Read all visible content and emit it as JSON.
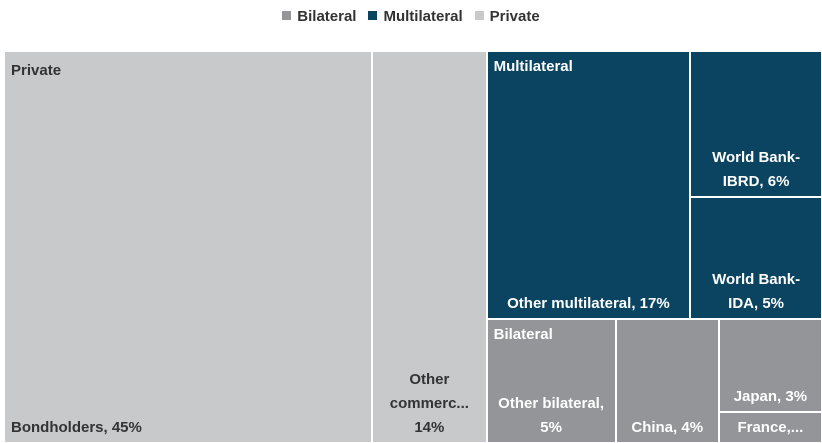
{
  "chart_data": {
    "type": "treemap",
    "legend_position": "top",
    "groups": [
      {
        "name": "Bilateral",
        "color": "#939598",
        "text_color": "#ffffff",
        "labels": [
          "Other bilateral, 5%",
          "China, 4%",
          "Japan, 3%",
          "France,..."
        ],
        "values": [
          5,
          4,
          3,
          1
        ]
      },
      {
        "name": "Multilateral",
        "color": "#0b4460",
        "text_color": "#ffffff",
        "labels": [
          "Other multilateral, 17%",
          "World Bank-IBRD, 6%",
          "World Bank-IDA, 5%"
        ],
        "values": [
          17,
          6,
          5
        ]
      },
      {
        "name": "Private",
        "color": "#c8c9cb",
        "text_color": "#333333",
        "labels": [
          "Bondholders, 45%",
          "Other commerc... 14%"
        ],
        "values": [
          45,
          14
        ]
      }
    ]
  }
}
